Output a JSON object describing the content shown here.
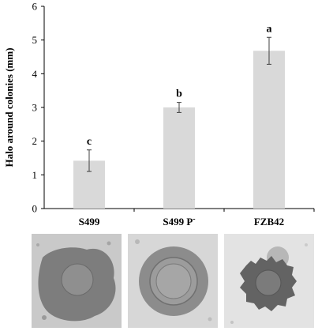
{
  "chart_data": {
    "type": "bar",
    "categories": [
      "S499",
      "S499 P",
      "FZB42"
    ],
    "category_superscripts": [
      "",
      "-",
      ""
    ],
    "values": [
      1.42,
      3.0,
      4.68
    ],
    "errors": [
      0.32,
      0.15,
      0.4
    ],
    "significance_letters": [
      "c",
      "b",
      "a"
    ],
    "ylabel": "Halo around colonies (mm)",
    "xlabel": "",
    "ylim": [
      0,
      6
    ],
    "yticks": [
      "0",
      "1",
      "2",
      "3",
      "4",
      "5",
      "6"
    ],
    "grid": false,
    "bar_color": "#d9d9d9",
    "error_color": "#404040"
  },
  "photos": [
    {
      "name": "S499 plate halo photo",
      "background": "#c9c9c9",
      "halo": "#7c7c7c",
      "center": "#8e8e8e"
    },
    {
      "name": "S499 P- plate halo photo",
      "background": "#d6d6d6",
      "halo": "#8a8a8a",
      "center": "#9a9a9a"
    },
    {
      "name": "FZB42 plate halo photo",
      "background": "#e4e4e4",
      "halo": "#626262",
      "center": "#7a7a7a"
    }
  ]
}
